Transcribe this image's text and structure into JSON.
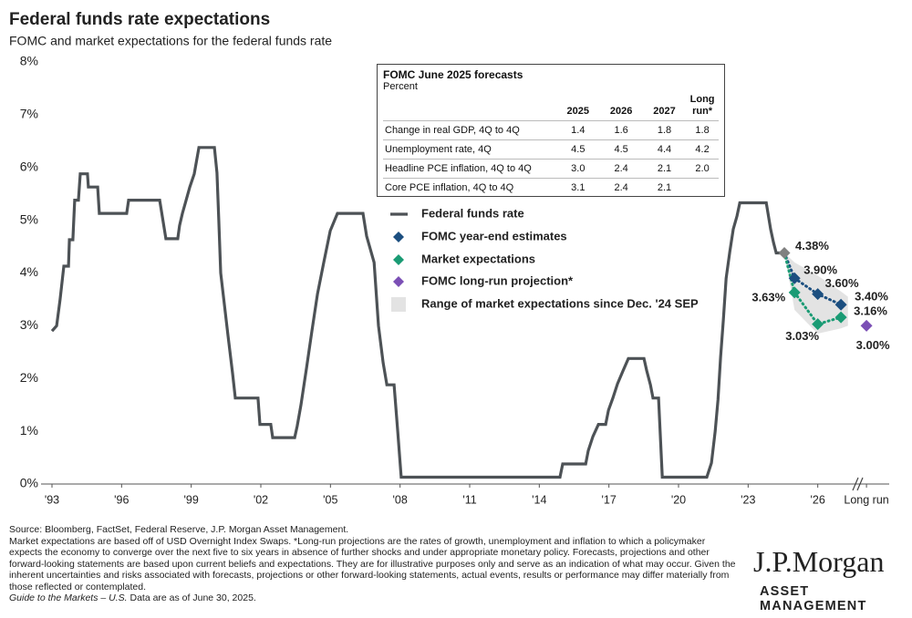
{
  "chart_data": {
    "type": "line",
    "title": "Federal funds rate expectations",
    "subtitle": "FOMC and market expectations for the federal funds rate",
    "xlim": [
      1993,
      2029
    ],
    "xticks": [
      {
        "value": 1993,
        "label": "'93"
      },
      {
        "value": 1996,
        "label": "'96"
      },
      {
        "value": 1999,
        "label": "'99"
      },
      {
        "value": 2002,
        "label": "'02"
      },
      {
        "value": 2005,
        "label": "'05"
      },
      {
        "value": 2008,
        "label": "'08"
      },
      {
        "value": 2011,
        "label": "'11"
      },
      {
        "value": 2014,
        "label": "'14"
      },
      {
        "value": 2017,
        "label": "'17"
      },
      {
        "value": 2020,
        "label": "'20"
      },
      {
        "value": 2023,
        "label": "'23"
      },
      {
        "value": 2026,
        "label": "'26"
      },
      {
        "value": 2028.1,
        "label": "Long run"
      }
    ],
    "ylim": [
      0,
      8
    ],
    "yticks": [
      {
        "value": 0,
        "label": "0%"
      },
      {
        "value": 1,
        "label": "1%"
      },
      {
        "value": 2,
        "label": "2%"
      },
      {
        "value": 3,
        "label": "3%"
      },
      {
        "value": 4,
        "label": "4%"
      },
      {
        "value": 5,
        "label": "5%"
      },
      {
        "value": 6,
        "label": "6%"
      },
      {
        "value": 7,
        "label": "7%"
      },
      {
        "value": 8,
        "label": "8%"
      }
    ],
    "series": [
      {
        "name": "Federal funds rate",
        "color": "#4d5256",
        "x": [
          1993.0,
          1993.2,
          1993.35,
          1993.51,
          1993.71,
          1993.75,
          1993.9,
          1993.98,
          1994.14,
          1994.22,
          1994.53,
          1994.57,
          1994.97,
          1995.04,
          1996.22,
          1996.3,
          1997.64,
          1997.91,
          1998.42,
          1998.5,
          1998.62,
          1998.78,
          1998.94,
          1999.13,
          1999.33,
          2000.0,
          2000.11,
          2000.19,
          2000.27,
          2000.59,
          2000.78,
          2000.9,
          2001.88,
          2001.96,
          2002.43,
          2002.51,
          2003.46,
          2003.57,
          2003.73,
          2003.97,
          2004.2,
          2004.44,
          2004.71,
          2004.99,
          2005.3,
          2006.4,
          2006.56,
          2006.88,
          2007.07,
          2007.27,
          2007.43,
          2007.74,
          2007.9,
          2008.05,
          2014.89,
          2015.01,
          2016.0,
          2016.11,
          2016.31,
          2016.55,
          2016.86,
          2016.98,
          2017.17,
          2017.37,
          2017.61,
          2017.84,
          2018.51,
          2018.63,
          2018.79,
          2018.9,
          2019.14,
          2019.3,
          2021.22,
          2021.42,
          2021.58,
          2021.7,
          2021.81,
          2021.93,
          2022.05,
          2022.21,
          2022.36,
          2022.52,
          2022.64,
          2023.78,
          2023.97,
          2024.09,
          2024.21,
          2024.56
        ],
        "values": [
          2.9,
          3.0,
          3.5,
          4.13,
          4.13,
          4.63,
          4.63,
          5.38,
          5.38,
          5.88,
          5.88,
          5.63,
          5.63,
          5.13,
          5.13,
          5.38,
          5.38,
          4.65,
          4.65,
          4.9,
          5.13,
          5.38,
          5.63,
          5.88,
          6.38,
          6.38,
          5.9,
          5.0,
          4.0,
          2.8,
          2.1,
          1.63,
          1.63,
          1.13,
          1.13,
          0.88,
          0.88,
          1.1,
          1.5,
          2.2,
          2.9,
          3.6,
          4.2,
          4.8,
          5.13,
          5.13,
          4.7,
          4.2,
          3.0,
          2.3,
          1.88,
          1.88,
          1.0,
          0.13,
          0.13,
          0.38,
          0.38,
          0.63,
          0.9,
          1.13,
          1.13,
          1.4,
          1.63,
          1.9,
          2.15,
          2.38,
          2.38,
          2.15,
          1.88,
          1.63,
          1.63,
          0.13,
          0.13,
          0.4,
          1.0,
          1.6,
          2.4,
          3.1,
          3.9,
          4.4,
          4.83,
          5.08,
          5.33,
          5.33,
          4.83,
          4.58,
          4.38,
          4.38
        ]
      },
      {
        "name": "FOMC year-end estimates",
        "color": "#1c4f80",
        "x": [
          2025,
          2026,
          2027
        ],
        "values": [
          3.9,
          3.6,
          3.4
        ],
        "value_labels": [
          "3.90%",
          "3.60%",
          "3.40%"
        ]
      },
      {
        "name": "Market expectations",
        "color": "#1a9b74",
        "x": [
          2025,
          2026,
          2027
        ],
        "values": [
          3.63,
          3.03,
          3.16
        ],
        "value_labels": [
          "3.63%",
          "3.03%",
          "3.16%"
        ]
      },
      {
        "name": "FOMC long-run projection*",
        "color": "#7b4fb5",
        "x": [
          2028.1
        ],
        "values": [
          3.0
        ],
        "value_labels": [
          "3.00%"
        ]
      }
    ],
    "range": {
      "name": "Range of market expectations since Dec. '24 SEP",
      "color": "#e3e3e3",
      "x": [
        2024.56,
        2025,
        2026,
        2027,
        2027.3
      ],
      "upper": [
        4.38,
        4.2,
        3.95,
        3.65,
        3.55
      ],
      "lower": [
        4.38,
        3.3,
        2.85,
        2.95,
        3.0
      ]
    },
    "latest": {
      "x": 2024.56,
      "value": 4.38,
      "value_label": "4.38%",
      "color": "#808080"
    }
  },
  "table": {
    "title": "FOMC June 2025 forecasts",
    "subtitle": "Percent",
    "columns": [
      "2025",
      "2026",
      "2027",
      "Long run*"
    ],
    "rows": [
      {
        "label": "Change in real GDP, 4Q to 4Q",
        "values": [
          "1.4",
          "1.6",
          "1.8",
          "1.8"
        ]
      },
      {
        "label": "Unemployment rate, 4Q",
        "values": [
          "4.5",
          "4.5",
          "4.4",
          "4.2"
        ]
      },
      {
        "label": "Headline PCE inflation, 4Q to 4Q",
        "values": [
          "3.0",
          "2.4",
          "2.1",
          "2.0"
        ]
      },
      {
        "label": "Core PCE inflation, 4Q to 4Q",
        "values": [
          "3.1",
          "2.4",
          "2.1",
          null
        ]
      }
    ]
  },
  "footer": {
    "source": "Source: Bloomberg, FactSet, Federal Reserve, J.P. Morgan Asset Management.",
    "notes": "Market expectations are based off of USD Overnight Index Swaps. *Long-run projections are the rates of growth, unemployment and inflation to which a policymaker expects the economy to converge over the next five to six years in absence of further shocks and under appropriate monetary policy. Forecasts, projections and other forward-looking statements are based upon current beliefs and expectations. They are for illustrative purposes only and serve as an indication of what may occur. Given the inherent uncertainties and risks associated with forecasts, projections or other forward-looking statements, actual events, results or performance may differ materially from those reflected or contemplated.",
    "guide": "Guide to the Markets – U.S.",
    "date": "Data are as of June 30, 2025."
  },
  "logo": {
    "name": "J.P.Morgan",
    "subtitle": "ASSET MANAGEMENT"
  }
}
